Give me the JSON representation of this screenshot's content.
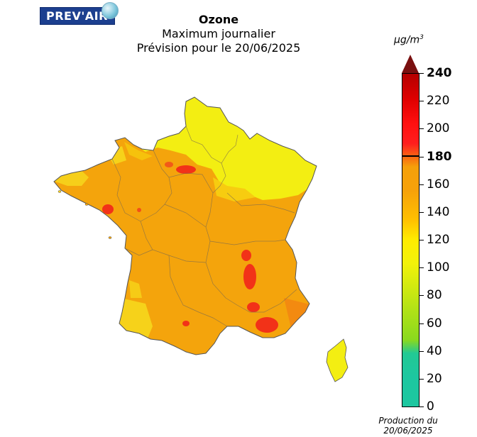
{
  "logo": {
    "text": "PREV'AIR"
  },
  "title": "Ozone",
  "subtitle": "Maximum journalier",
  "forecast": "Prévision pour le 20/06/2025",
  "unit": "μg/m",
  "unit_exp": "3",
  "colorbar": {
    "ticks": [
      {
        "label": "240",
        "value": 240,
        "bold": true
      },
      {
        "label": "220",
        "value": 220,
        "bold": false
      },
      {
        "label": "200",
        "value": 200,
        "bold": false
      },
      {
        "label": "180",
        "value": 180,
        "bold": true
      },
      {
        "label": "160",
        "value": 160,
        "bold": false
      },
      {
        "label": "140",
        "value": 140,
        "bold": false
      },
      {
        "label": "120",
        "value": 120,
        "bold": false
      },
      {
        "label": "100",
        "value": 100,
        "bold": false
      },
      {
        "label": "80",
        "value": 80,
        "bold": false
      },
      {
        "label": "60",
        "value": 60,
        "bold": false
      },
      {
        "label": "40",
        "value": 40,
        "bold": false
      },
      {
        "label": "20",
        "value": 20,
        "bold": false
      },
      {
        "label": "0",
        "value": 0,
        "bold": false
      }
    ],
    "threshold": 180,
    "min": 0,
    "max": 240,
    "colors": {
      "low": "#1dc7a0",
      "mid_green": "#8ad91e",
      "yellow": "#f2f20a",
      "orange": "#f5a00a",
      "red": "#ff1e1e",
      "dark_red": "#b40000"
    }
  },
  "map": {
    "region": "France",
    "colors": {
      "north_east": "#f3ee12",
      "main": "#f4a40c",
      "hotspot": "#f23218",
      "southwest_coast": "#f6d21a"
    }
  },
  "production": {
    "line1": "Production du",
    "line2": "20/06/2025"
  }
}
